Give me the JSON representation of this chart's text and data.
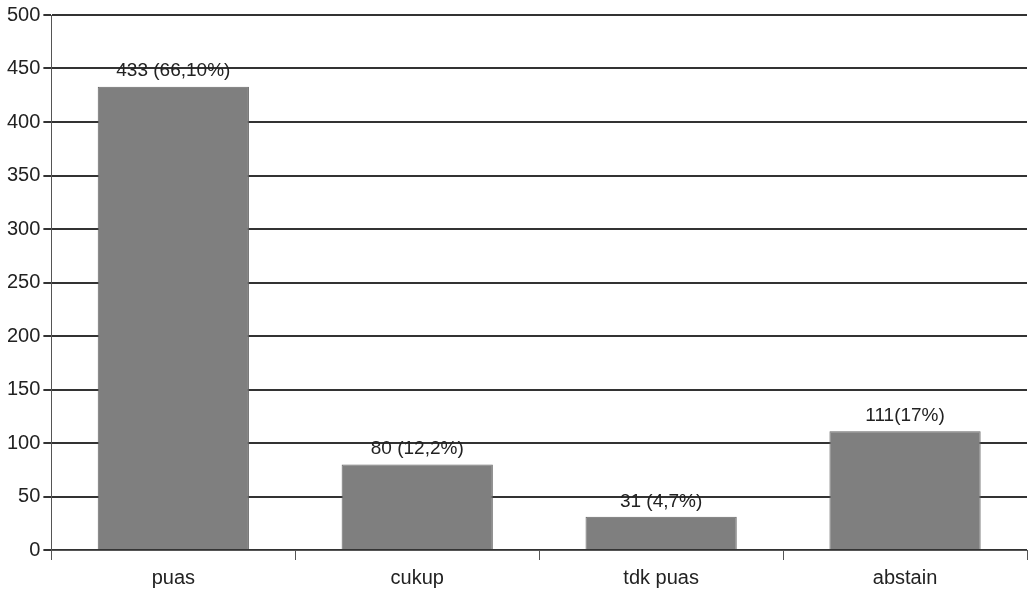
{
  "chart_data": {
    "type": "bar",
    "categories": [
      "puas",
      "cukup",
      "tdk puas",
      "abstain"
    ],
    "values": [
      433,
      80,
      31,
      111
    ],
    "value_labels": [
      "433 (66,10%)",
      "80 (12,2%)",
      "31 (4,7%)",
      "111(17%)"
    ],
    "color": "#7f7f7f",
    "ylim": [
      0,
      500
    ],
    "yticks": [
      0,
      50,
      100,
      150,
      200,
      250,
      300,
      350,
      400,
      450,
      500
    ],
    "grid": "y",
    "legend": false
  }
}
